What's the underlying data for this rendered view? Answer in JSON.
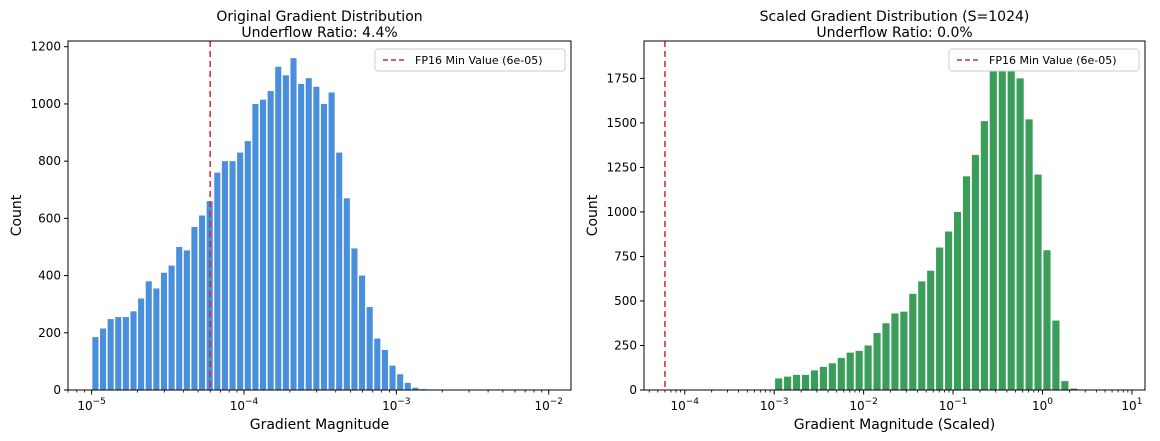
{
  "chart_data": [
    {
      "type": "bar",
      "title": "Original Gradient Distribution",
      "subtitle": "Underflow Ratio: 4.4%",
      "xlabel": "Gradient Magnitude",
      "ylabel": "Count",
      "xscale": "log",
      "xlim": [
        7e-06,
        0.014
      ],
      "ylim": [
        0,
        1220
      ],
      "xticks": [
        {
          "value": 1e-05,
          "base": "10",
          "exp": "−5"
        },
        {
          "value": 0.0001,
          "base": "10",
          "exp": "−4"
        },
        {
          "value": 0.001,
          "base": "10",
          "exp": "−3"
        },
        {
          "value": 0.01,
          "base": "10",
          "exp": "−2"
        }
      ],
      "yticks": [
        0,
        200,
        400,
        600,
        800,
        1000,
        1200
      ],
      "bar_color": "#4a8fdb",
      "bins": {
        "start": 1e-05,
        "end": 0.01,
        "count": 60
      },
      "values": [
        185,
        215,
        248,
        255,
        255,
        275,
        320,
        380,
        355,
        410,
        435,
        500,
        488,
        570,
        610,
        660,
        760,
        800,
        800,
        830,
        870,
        1000,
        1015,
        1045,
        1130,
        1100,
        1160,
        1070,
        1090,
        1060,
        1000,
        1040,
        830,
        670,
        495,
        400,
        290,
        180,
        140,
        85,
        55,
        25,
        8,
        3,
        2,
        1,
        0,
        0,
        0,
        0,
        0,
        0,
        0,
        0,
        0,
        0,
        0,
        0,
        0,
        0
      ],
      "reference_line": {
        "value": 6e-05,
        "label": "FP16 Min Value (6e-05)",
        "color": "#d62728",
        "style": "dashed"
      },
      "legend": {
        "position": "top-right",
        "entries": [
          "FP16 Min Value (6e-05)"
        ]
      },
      "grid": false
    },
    {
      "type": "bar",
      "title": "Scaled Gradient Distribution (S=1024)",
      "subtitle": "Underflow Ratio: 0.0%",
      "xlabel": "Gradient Magnitude (Scaled)",
      "ylabel": "Count",
      "xscale": "log",
      "xlim": [
        3.5e-05,
        14
      ],
      "ylim": [
        0,
        1960
      ],
      "xticks": [
        {
          "value": 0.0001,
          "base": "10",
          "exp": "−4"
        },
        {
          "value": 0.001,
          "base": "10",
          "exp": "−3"
        },
        {
          "value": 0.01,
          "base": "10",
          "exp": "−2"
        },
        {
          "value": 0.1,
          "base": "10",
          "exp": "−1"
        },
        {
          "value": 1,
          "base": "10",
          "exp": "0"
        },
        {
          "value": 10,
          "base": "10",
          "exp": "1"
        }
      ],
      "yticks": [
        0,
        250,
        500,
        750,
        1000,
        1250,
        1500,
        1750
      ],
      "bar_color": "#3a9e5a",
      "bins": {
        "start": 0.001,
        "end": 10,
        "count": 40
      },
      "values": [
        65,
        75,
        85,
        85,
        110,
        130,
        150,
        180,
        210,
        220,
        250,
        320,
        375,
        430,
        440,
        540,
        610,
        670,
        800,
        890,
        1000,
        1200,
        1320,
        1510,
        1820,
        1870,
        1860,
        1750,
        1520,
        1210,
        785,
        390,
        50,
        8,
        0,
        0,
        0,
        0,
        0,
        0
      ],
      "reference_line": {
        "value": 6e-05,
        "label": "FP16 Min Value (6e-05)",
        "color": "#d62728",
        "style": "dashed"
      },
      "legend": {
        "position": "top-right",
        "entries": [
          "FP16 Min Value (6e-05)"
        ]
      },
      "grid": false
    }
  ]
}
